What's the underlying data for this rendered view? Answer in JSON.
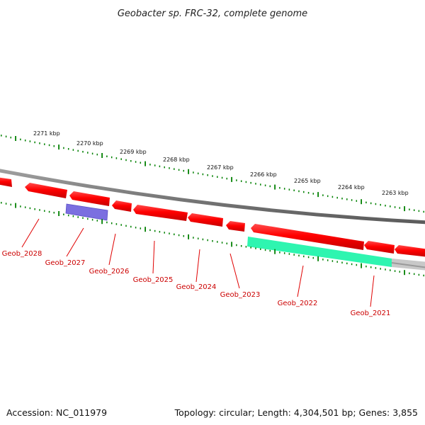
{
  "title": "Geobacter sp. FRC-32, complete genome",
  "footer": {
    "accession": "Accession: NC_011979",
    "summary": "Topology: circular; Length: 4,304,501 bp; Genes: 3,855"
  },
  "scale_labels": [
    "2271 kbp",
    "2270 kbp",
    "2269 kbp",
    "2268 kbp",
    "2267 kbp",
    "2266 kbp",
    "2265 kbp",
    "2264 kbp",
    "2263 kbp"
  ],
  "gene_labels": [
    "Geob_2028",
    "Geob_2027",
    "Geob_2026",
    "Geob_2025",
    "Geob_2024",
    "Geob_2023",
    "Geob_2022",
    "Geob_2021"
  ],
  "colors": {
    "backbone": "#808080",
    "gene": "#ff0000",
    "label": "#cc0000",
    "tick": "#008000",
    "feature_blue": "#7b6fe0",
    "feature_green": "#2ef5b0",
    "feature_grey": "#c0c0c0"
  }
}
